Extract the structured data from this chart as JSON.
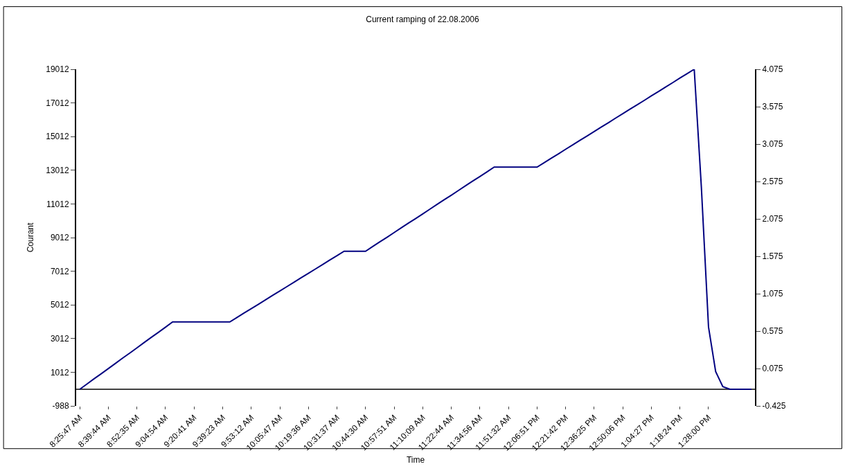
{
  "chart_data": {
    "type": "line",
    "title": "Current ramping of 22.08.2006",
    "xlabel": "Time",
    "ylabel": "Courant",
    "categories": [
      "8:25:47 AM",
      null,
      null,
      null,
      "8:39:44 AM",
      null,
      null,
      null,
      "8:52:35 AM",
      null,
      null,
      null,
      "9:04:54 AM",
      null,
      null,
      null,
      "9:20:41 AM",
      null,
      null,
      null,
      "9:39:23 AM",
      null,
      null,
      null,
      "9:53:12 AM",
      null,
      null,
      null,
      "10:05:47 AM",
      null,
      null,
      null,
      "10:19:36 AM",
      null,
      null,
      null,
      "10:31:37 AM",
      null,
      null,
      null,
      "10:44:30 AM",
      null,
      null,
      null,
      "10:57:51 AM",
      null,
      null,
      null,
      "11:10:09 AM",
      null,
      null,
      null,
      "11:22:44 AM",
      null,
      null,
      null,
      "11:34:56 AM",
      null,
      null,
      null,
      "11:51:32 AM",
      null,
      null,
      null,
      "12:06:51 PM",
      null,
      null,
      null,
      "12:21:42 PM",
      null,
      null,
      null,
      "12:36:25 PM",
      null,
      null,
      null,
      "12:50:06 PM",
      null,
      null,
      null,
      "1:04:27 PM",
      null,
      null,
      null,
      "1:18:24 PM",
      null,
      null,
      null,
      "1:28:00 PM",
      null,
      null,
      null,
      null,
      null,
      null
    ],
    "series": [
      {
        "color": "#000080",
        "values": [
          0,
          310,
          620,
          920,
          1230,
          1540,
          1850,
          2150,
          2460,
          2770,
          3080,
          3380,
          3690,
          4000,
          4000,
          4000,
          4000,
          4000,
          4000,
          4000,
          4000,
          4000,
          4260,
          4530,
          4790,
          5050,
          5310,
          5580,
          5840,
          6100,
          6360,
          6630,
          6890,
          7150,
          7410,
          7680,
          7940,
          8200,
          8200,
          8200,
          8200,
          8480,
          8760,
          9030,
          9310,
          9590,
          9870,
          10140,
          10420,
          10700,
          10980,
          11260,
          11530,
          11810,
          12090,
          12370,
          12640,
          12920,
          13200,
          13200,
          13200,
          13200,
          13200,
          13200,
          13200,
          13460,
          13730,
          13990,
          14260,
          14520,
          14790,
          15050,
          15310,
          15580,
          15840,
          16110,
          16370,
          16640,
          16900,
          17160,
          17430,
          17690,
          17960,
          18220,
          18490,
          18750,
          19012,
          12000,
          3700,
          1050,
          160,
          0,
          0,
          0,
          0
        ]
      }
    ],
    "ylim": [
      -988,
      19012
    ],
    "yticks": [
      -988,
      1012,
      3012,
      5012,
      7012,
      9012,
      11012,
      13012,
      15012,
      17012,
      19012
    ],
    "y2lim": [
      -0.425,
      4.075
    ],
    "y2ticks": [
      -0.425,
      0.075,
      0.575,
      1.075,
      1.575,
      2.075,
      2.575,
      3.075,
      3.575,
      4.075
    ],
    "ref_lines": [
      {
        "axis": "y",
        "value": 0,
        "color": "#000000"
      }
    ],
    "grid": false,
    "marker": "none",
    "line_style": "solid"
  }
}
